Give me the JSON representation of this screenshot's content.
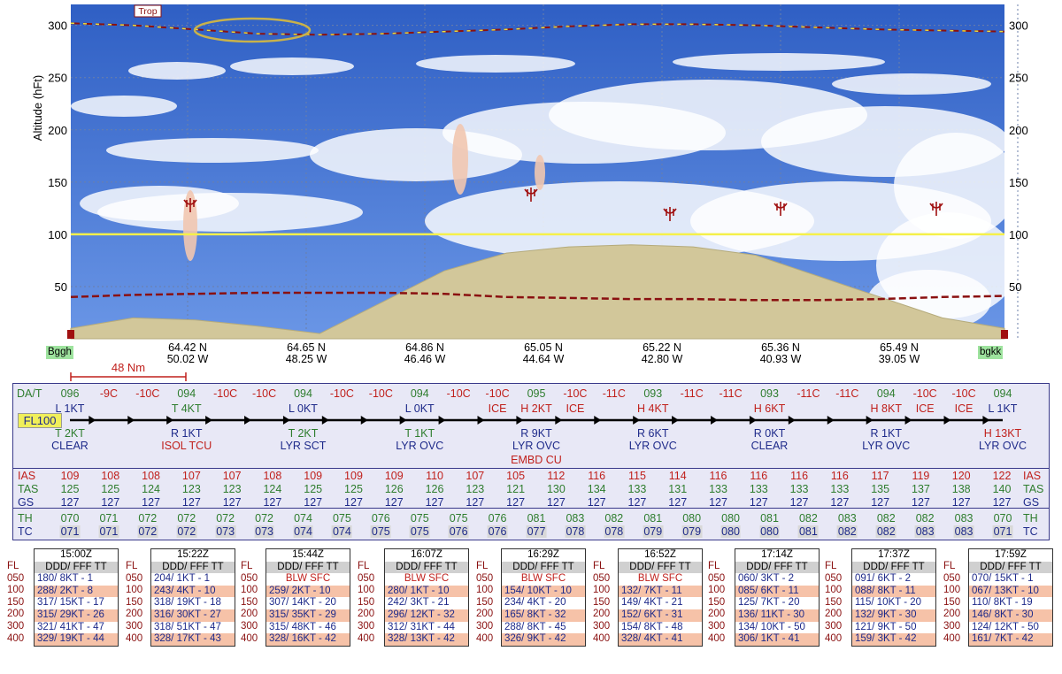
{
  "chart_data": {
    "type": "area",
    "ylabel": "Altitude (hFt)",
    "ylim": [
      0,
      320
    ],
    "yticks": [
      50,
      100,
      150,
      200,
      250,
      300
    ],
    "route_points": [
      {
        "lat": "64.42 N",
        "lon": "50.02 W"
      },
      {
        "lat": "64.65 N",
        "lon": "48.25 W"
      },
      {
        "lat": "64.86 N",
        "lon": "46.46 W"
      },
      {
        "lat": "65.05 N",
        "lon": "44.64 W"
      },
      {
        "lat": "65.22 N",
        "lon": "42.80 W"
      },
      {
        "lat": "65.36 N",
        "lon": "40.93 W"
      },
      {
        "lat": "65.49 N",
        "lon": "39.05 W"
      }
    ],
    "start_label": "Bggh",
    "end_label": "bgkk",
    "scale_label": "48 Nm",
    "trop_label": "Trop",
    "flight_level": 100,
    "tropopause_hft": [
      302,
      300,
      296,
      292,
      291,
      292,
      294,
      296,
      299,
      301,
      301,
      300,
      298,
      296,
      295,
      294
    ],
    "freezing_level_hft": [
      40,
      42,
      43,
      44,
      44,
      44,
      43,
      40,
      39,
      38,
      38,
      37,
      37,
      38,
      40,
      41
    ],
    "terrain_hft": [
      10,
      20,
      18,
      12,
      5,
      35,
      65,
      82,
      88,
      90,
      88,
      80,
      60,
      40,
      20,
      10
    ],
    "colors": {
      "sky": "#4a7ad8",
      "terrain": "#d2c79a",
      "cloud": "#ffffff",
      "trop": "#8a1010",
      "flight_level": "#f5f04a"
    }
  },
  "route_table": {
    "row_label_da": "DA/T",
    "fl_label": "FL100",
    "da_values": [
      {
        "t": "096",
        "c": "g"
      },
      {
        "t": "-9C",
        "c": "r"
      },
      {
        "t": "-10C",
        "c": "r"
      },
      {
        "t": "094",
        "c": "g"
      },
      {
        "t": "-10C",
        "c": "r"
      },
      {
        "t": "-10C",
        "c": "r"
      },
      {
        "t": "094",
        "c": "g"
      },
      {
        "t": "-10C",
        "c": "r"
      },
      {
        "t": "-10C",
        "c": "r"
      },
      {
        "t": "094",
        "c": "g"
      },
      {
        "t": "-10C",
        "c": "r"
      },
      {
        "t": "-10C",
        "c": "r"
      },
      {
        "t": "095",
        "c": "g"
      },
      {
        "t": "-10C",
        "c": "r"
      },
      {
        "t": "-11C",
        "c": "r"
      },
      {
        "t": "093",
        "c": "g"
      },
      {
        "t": "-11C",
        "c": "r"
      },
      {
        "t": "-11C",
        "c": "r"
      },
      {
        "t": "093",
        "c": "g"
      },
      {
        "t": "-11C",
        "c": "r"
      },
      {
        "t": "-11C",
        "c": "r"
      },
      {
        "t": "094",
        "c": "g"
      },
      {
        "t": "-10C",
        "c": "r"
      },
      {
        "t": "-10C",
        "c": "r"
      },
      {
        "t": "094",
        "c": "g"
      }
    ],
    "upper_wind": [
      {
        "i": 0,
        "t": "L 1KT",
        "c": "b"
      },
      {
        "i": 3,
        "t": "T 4KT",
        "c": "g"
      },
      {
        "i": 6,
        "t": "L 0KT",
        "c": "b"
      },
      {
        "i": 9,
        "t": "L 0KT",
        "c": "b"
      },
      {
        "i": 11,
        "t": "ICE",
        "c": "r"
      },
      {
        "i": 12,
        "t": "H 2KT",
        "c": "r"
      },
      {
        "i": 13,
        "t": "ICE",
        "c": "r"
      },
      {
        "i": 15,
        "t": "H 4KT",
        "c": "r"
      },
      {
        "i": 18,
        "t": "H 6KT",
        "c": "r"
      },
      {
        "i": 21,
        "t": "H 8KT",
        "c": "r"
      },
      {
        "i": 22,
        "t": "ICE",
        "c": "r"
      },
      {
        "i": 23,
        "t": "ICE",
        "c": "r"
      },
      {
        "i": 24,
        "t": "L 1KT",
        "c": "b"
      }
    ],
    "lower_wind": [
      {
        "i": 0,
        "t": "T 2KT",
        "c": "g"
      },
      {
        "i": 3,
        "t": "R 1KT",
        "c": "b"
      },
      {
        "i": 6,
        "t": "T 2KT",
        "c": "g"
      },
      {
        "i": 9,
        "t": "T 1KT",
        "c": "g"
      },
      {
        "i": 12,
        "t": "R 9KT",
        "c": "b"
      },
      {
        "i": 15,
        "t": "R 6KT",
        "c": "b"
      },
      {
        "i": 18,
        "t": "R 0KT",
        "c": "b"
      },
      {
        "i": 21,
        "t": "R 1KT",
        "c": "b"
      },
      {
        "i": 24,
        "t": "H 13KT",
        "c": "r"
      }
    ],
    "conditions": [
      {
        "i": 0,
        "t": "CLEAR",
        "c": "b"
      },
      {
        "i": 3,
        "t": "ISOL TCU",
        "c": "r"
      },
      {
        "i": 6,
        "t": "LYR SCT",
        "c": "b"
      },
      {
        "i": 9,
        "t": "LYR OVC",
        "c": "b"
      },
      {
        "i": 12,
        "t": "LYR OVC",
        "c": "b"
      },
      {
        "i": 15,
        "t": "LYR OVC",
        "c": "b"
      },
      {
        "i": 18,
        "t": "CLEAR",
        "c": "b"
      },
      {
        "i": 21,
        "t": "LYR OVC",
        "c": "b"
      },
      {
        "i": 24,
        "t": "LYR OVC",
        "c": "b"
      }
    ],
    "conditions2": [
      {
        "i": 12,
        "t": "EMBD CU",
        "c": "r"
      }
    ],
    "speed_rows": [
      {
        "label": "IAS",
        "cls": "r",
        "values": [
          "109",
          "108",
          "108",
          "107",
          "107",
          "108",
          "109",
          "109",
          "109",
          "110",
          "107",
          "105",
          "112",
          "116",
          "115",
          "114",
          "116",
          "116",
          "116",
          "116",
          "117",
          "119",
          "120",
          "122"
        ]
      },
      {
        "label": "TAS",
        "cls": "g",
        "values": [
          "125",
          "125",
          "124",
          "123",
          "123",
          "124",
          "125",
          "125",
          "126",
          "126",
          "123",
          "121",
          "130",
          "134",
          "133",
          "131",
          "133",
          "133",
          "133",
          "133",
          "135",
          "137",
          "138",
          "140"
        ]
      },
      {
        "label": "GS",
        "cls": "b",
        "values": [
          "127",
          "127",
          "127",
          "127",
          "127",
          "127",
          "127",
          "127",
          "127",
          "127",
          "127",
          "127",
          "127",
          "127",
          "127",
          "127",
          "127",
          "127",
          "127",
          "127",
          "127",
          "127",
          "127",
          "127"
        ]
      }
    ],
    "heading_rows": [
      {
        "label": "TH",
        "cls": "g",
        "values": [
          "070",
          "071",
          "072",
          "072",
          "072",
          "072",
          "074",
          "075",
          "076",
          "075",
          "075",
          "076",
          "081",
          "083",
          "082",
          "081",
          "080",
          "080",
          "081",
          "082",
          "083",
          "082",
          "082",
          "083",
          "070"
        ]
      },
      {
        "label": "TC",
        "cls": "b",
        "values": [
          "071",
          "071",
          "072",
          "072",
          "073",
          "073",
          "074",
          "074",
          "075",
          "075",
          "076",
          "076",
          "077",
          "078",
          "078",
          "079",
          "079",
          "080",
          "080",
          "081",
          "082",
          "082",
          "083",
          "083",
          "071"
        ]
      }
    ]
  },
  "winds_aloft": {
    "fl_label": "FL",
    "header": "DDD/ FFF TT",
    "levels": [
      "050",
      "100",
      "150",
      "200",
      "300",
      "400"
    ],
    "tables": [
      {
        "time": "15:00Z",
        "rows": [
          "180/ 8KT - 1",
          "288/ 2KT - 8",
          "317/ 15KT - 17",
          "315/ 29KT - 26",
          "321/ 41KT - 47",
          "329/ 19KT - 44"
        ]
      },
      {
        "time": "15:22Z",
        "rows": [
          "204/ 1KT - 1",
          "243/ 4KT - 10",
          "318/ 19KT - 18",
          "316/ 30KT - 27",
          "318/ 51KT - 47",
          "328/ 17KT - 43"
        ]
      },
      {
        "time": "15:44Z",
        "rows": [
          "BLW SFC",
          "259/ 2KT - 10",
          "307/ 14KT - 20",
          "315/ 35KT - 29",
          "315/ 48KT - 46",
          "328/ 16KT - 42"
        ]
      },
      {
        "time": "16:07Z",
        "rows": [
          "BLW SFC",
          "280/ 1KT - 10",
          "242/ 3KT - 21",
          "296/ 12KT - 32",
          "312/ 31KT - 44",
          "328/ 13KT - 42"
        ]
      },
      {
        "time": "16:29Z",
        "rows": [
          "BLW SFC",
          "154/ 10KT - 10",
          "234/ 4KT - 20",
          "165/ 8KT - 32",
          "288/ 8KT - 45",
          "326/ 9KT - 42"
        ]
      },
      {
        "time": "16:52Z",
        "rows": [
          "BLW SFC",
          "132/ 7KT - 11",
          "149/ 4KT - 21",
          "152/ 6KT - 31",
          "154/ 8KT - 48",
          "328/ 4KT - 41"
        ]
      },
      {
        "time": "17:14Z",
        "rows": [
          "060/ 3KT - 2",
          "085/ 6KT - 11",
          "125/ 7KT - 20",
          "136/ 11KT - 30",
          "134/ 10KT - 50",
          "306/ 1KT - 41"
        ]
      },
      {
        "time": "17:37Z",
        "rows": [
          "091/ 6KT - 2",
          "088/ 8KT - 11",
          "115/ 10KT - 20",
          "132/ 9KT - 30",
          "121/ 9KT - 50",
          "159/ 3KT - 42"
        ]
      },
      {
        "time": "17:59Z",
        "rows": [
          "070/ 15KT - 1",
          "067/ 13KT - 10",
          "110/ 8KT - 19",
          "146/ 8KT - 30",
          "124/ 12KT - 50",
          "161/ 7KT - 42"
        ]
      }
    ]
  }
}
